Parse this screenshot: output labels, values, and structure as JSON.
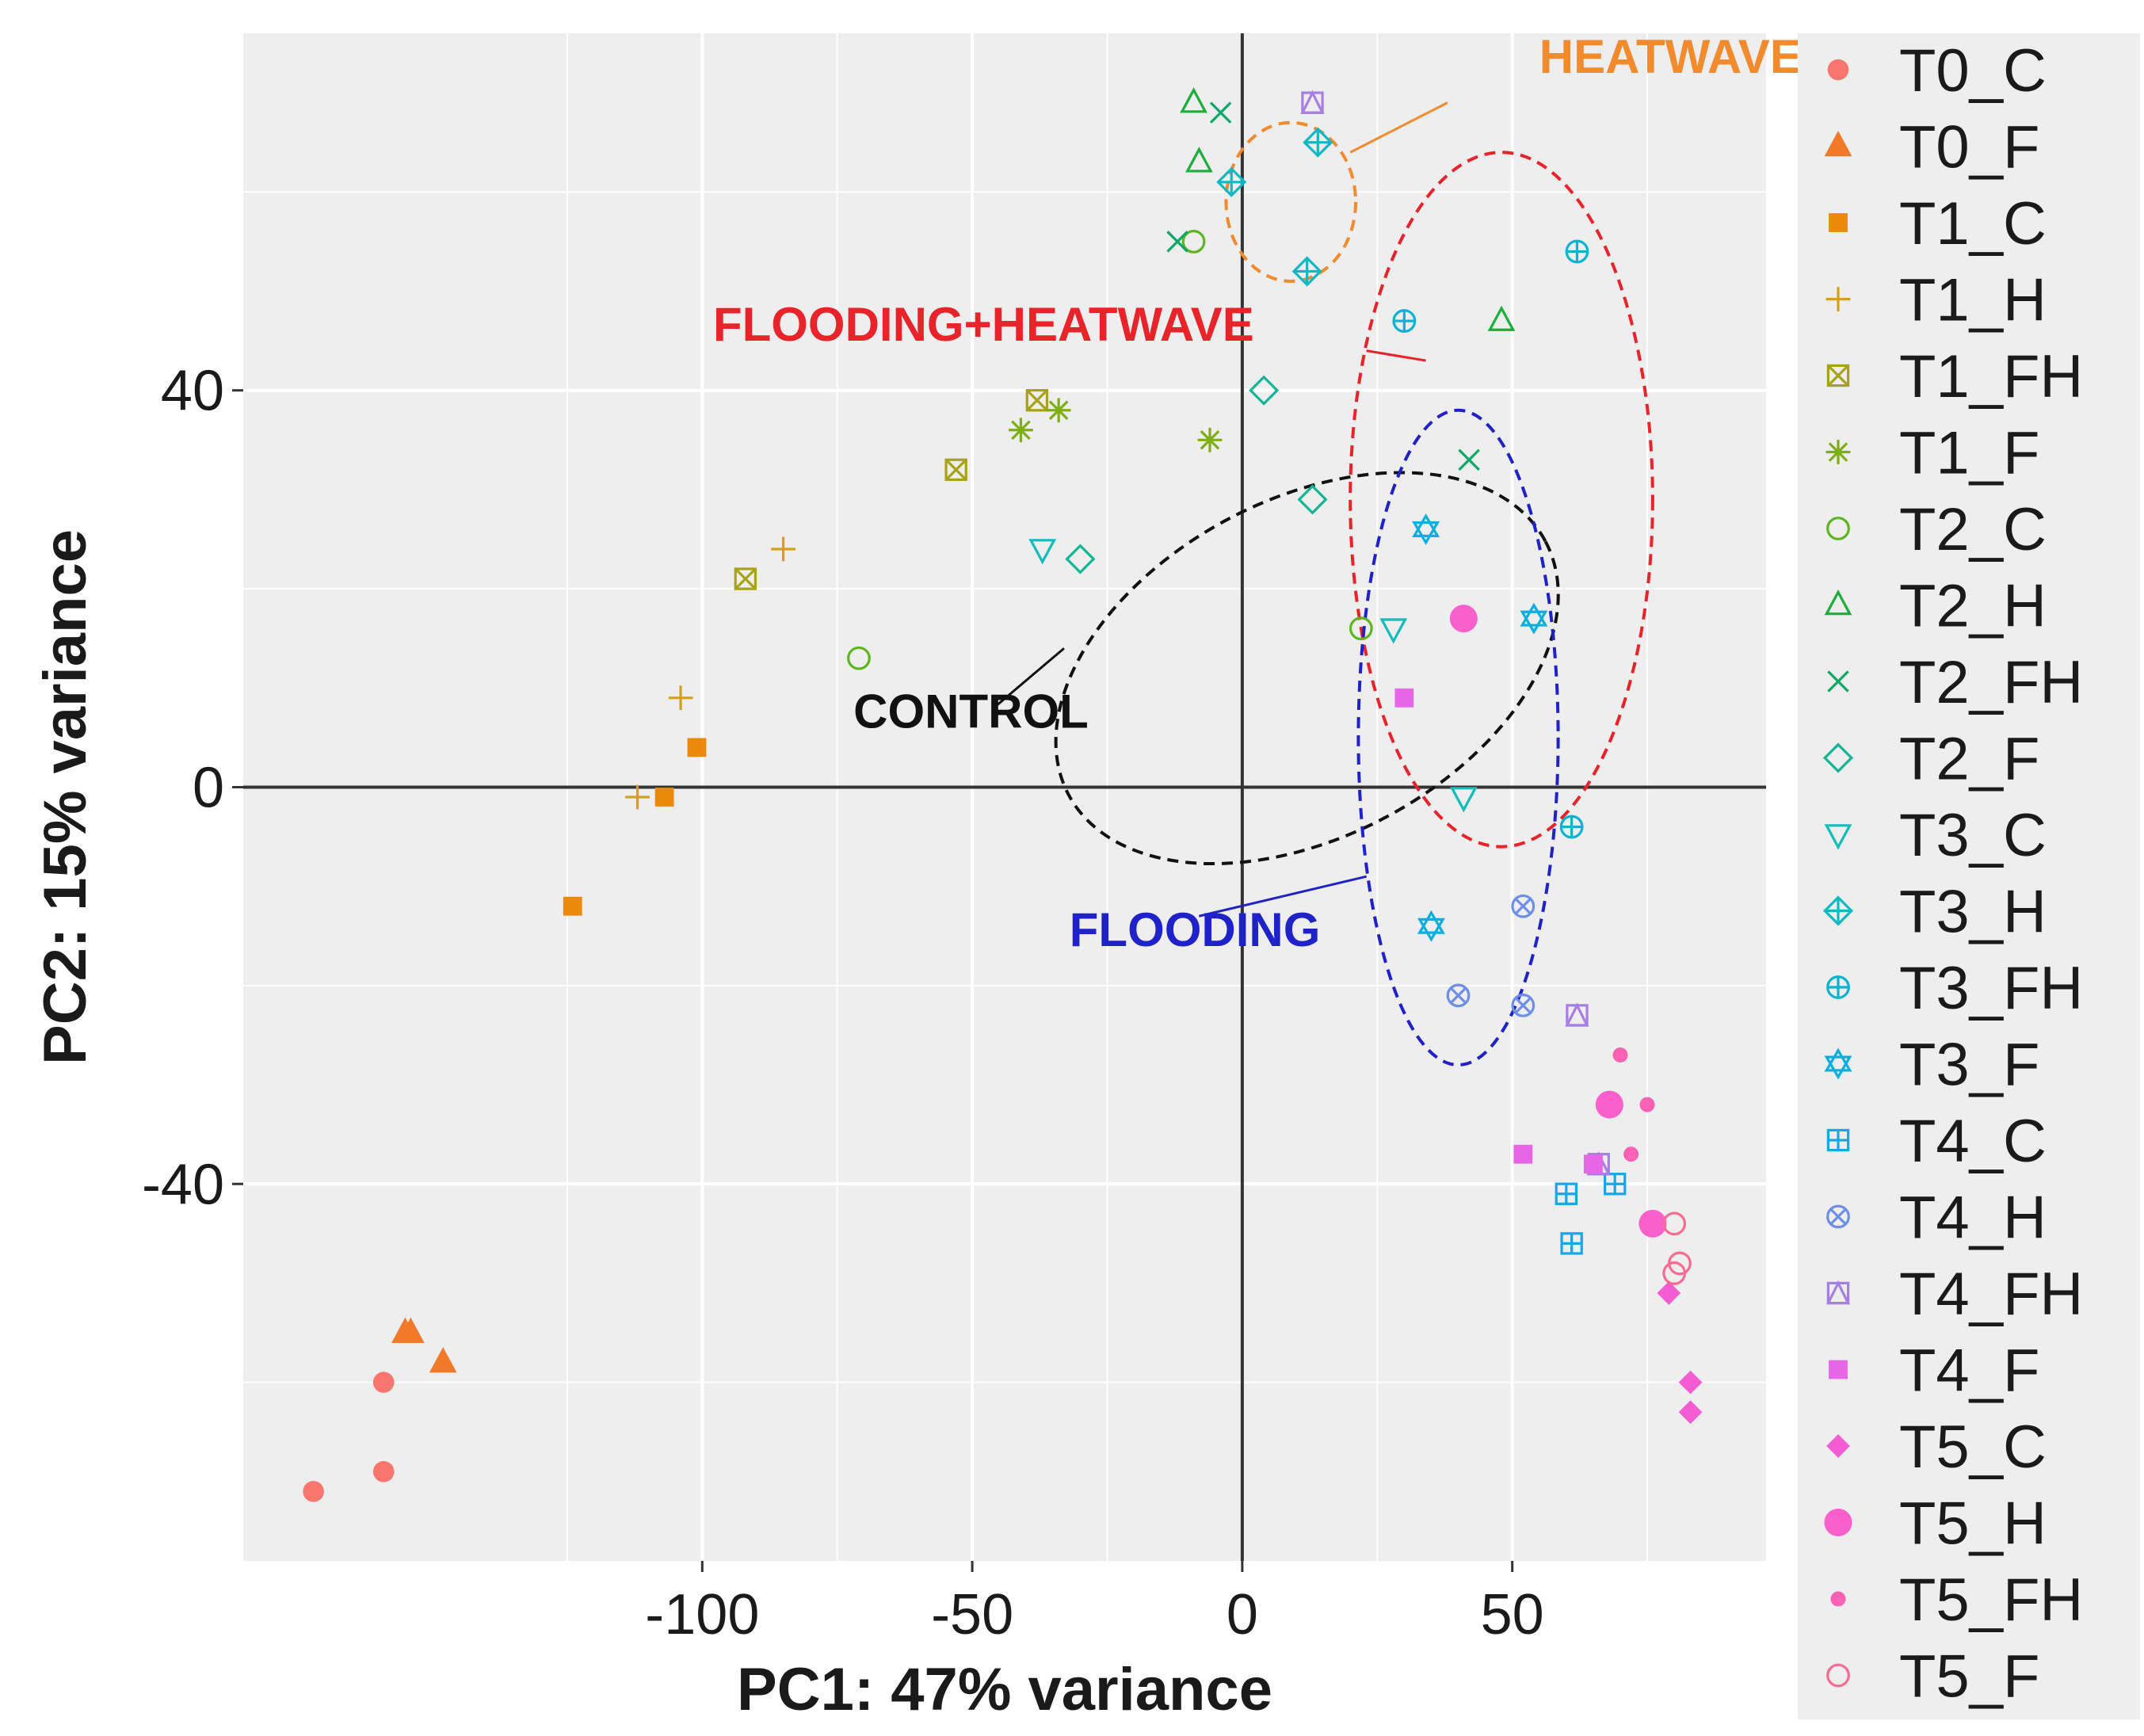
{
  "chart_data": {
    "type": "scatter",
    "xlabel": "PC1: 47% variance",
    "ylabel": "PC2: 15% variance",
    "xlim": [
      -185,
      97
    ],
    "ylim": [
      -78,
      76
    ],
    "x_ticks": [
      -100,
      -50,
      0,
      50
    ],
    "x_tick_labels": [
      "-100",
      "-50",
      "0",
      "50"
    ],
    "y_ticks": [
      -40,
      0,
      40
    ],
    "y_tick_labels": [
      "-40",
      "0",
      "40"
    ],
    "x_minor_grid": [
      -125,
      -75,
      -25,
      25,
      75
    ],
    "y_minor_grid": [
      -60,
      -20,
      20,
      60
    ],
    "grid": true,
    "legend_position": "right",
    "groups": [
      {
        "name": "T0_C",
        "color": "#F8766D",
        "shape": "circle-filled",
        "points": [
          [
            -159,
            -60
          ],
          [
            -172,
            -71
          ],
          [
            -159,
            -69
          ]
        ]
      },
      {
        "name": "T0_F",
        "color": "#F07A2A",
        "shape": "triangle-filled",
        "points": [
          [
            -155,
            -55
          ],
          [
            -154,
            -55
          ],
          [
            -148,
            -58
          ]
        ]
      },
      {
        "name": "T1_C",
        "color": "#E98A0A",
        "shape": "square-filled",
        "points": [
          [
            -101,
            4
          ],
          [
            -107,
            -1
          ],
          [
            -124,
            -12
          ]
        ]
      },
      {
        "name": "T1_H",
        "color": "#D4A017",
        "shape": "plus",
        "points": [
          [
            -85,
            24
          ],
          [
            -104,
            9
          ],
          [
            -112,
            -1
          ]
        ]
      },
      {
        "name": "T1_FH",
        "color": "#A8A218",
        "shape": "square-cross",
        "points": [
          [
            -38,
            39
          ],
          [
            -53,
            32
          ],
          [
            -92,
            21
          ]
        ]
      },
      {
        "name": "T1_F",
        "color": "#7DAE14",
        "shape": "asterisk",
        "points": [
          [
            -34,
            38
          ],
          [
            -41,
            36
          ],
          [
            -6,
            35
          ]
        ]
      },
      {
        "name": "T2_C",
        "color": "#5EB520",
        "shape": "circle-open",
        "points": [
          [
            -9,
            55
          ],
          [
            -71,
            13
          ],
          [
            22,
            16
          ]
        ]
      },
      {
        "name": "T2_H",
        "color": "#1AAE3A",
        "shape": "triangle-open",
        "points": [
          [
            -9,
            69
          ],
          [
            -8,
            63
          ],
          [
            48,
            47
          ]
        ]
      },
      {
        "name": "T2_FH",
        "color": "#0DA869",
        "shape": "x",
        "points": [
          [
            -4,
            68
          ],
          [
            -12,
            55
          ],
          [
            42,
            33
          ]
        ]
      },
      {
        "name": "T2_F",
        "color": "#12B595",
        "shape": "diamond-open",
        "points": [
          [
            4,
            40
          ],
          [
            13,
            29
          ],
          [
            -30,
            23
          ]
        ]
      },
      {
        "name": "T3_C",
        "color": "#12BCBC",
        "shape": "triangle-down-open",
        "points": [
          [
            -37,
            24
          ],
          [
            28,
            16
          ],
          [
            41,
            -1
          ]
        ]
      },
      {
        "name": "T3_H",
        "color": "#10B8C4",
        "shape": "diamond-plus",
        "points": [
          [
            14,
            65
          ],
          [
            -2,
            61
          ],
          [
            12,
            52
          ]
        ]
      },
      {
        "name": "T3_FH",
        "color": "#0BB2D4",
        "shape": "circle-plus",
        "points": [
          [
            62,
            54
          ],
          [
            30,
            47
          ],
          [
            61,
            -4
          ]
        ]
      },
      {
        "name": "T3_F",
        "color": "#0AAFE0",
        "shape": "star-of-david",
        "points": [
          [
            34,
            26
          ],
          [
            54,
            17
          ],
          [
            35,
            -14
          ]
        ]
      },
      {
        "name": "T4_C",
        "color": "#14A8E8",
        "shape": "square-plus",
        "points": [
          [
            60,
            -41
          ],
          [
            69,
            -40
          ],
          [
            61,
            -46
          ]
        ]
      },
      {
        "name": "T4_H",
        "color": "#6E8FE8",
        "shape": "circle-cross",
        "points": [
          [
            52,
            -12
          ],
          [
            40,
            -21
          ],
          [
            52,
            -22
          ]
        ]
      },
      {
        "name": "T4_FH",
        "color": "#A77EE6",
        "shape": "square-triangle",
        "points": [
          [
            13,
            69
          ],
          [
            62,
            -23
          ],
          [
            66,
            -38
          ]
        ]
      },
      {
        "name": "T4_F",
        "color": "#E766E8",
        "shape": "square-filled",
        "points": [
          [
            52,
            -37
          ],
          [
            30,
            9
          ],
          [
            65,
            -38
          ]
        ]
      },
      {
        "name": "T5_C",
        "color": "#F55BD2",
        "shape": "diamond-filled",
        "points": [
          [
            83,
            -60
          ],
          [
            83,
            -63
          ],
          [
            79,
            -51
          ]
        ]
      },
      {
        "name": "T5_H",
        "color": "#FB5FCC",
        "shape": "circle-filled-large",
        "points": [
          [
            41,
            17
          ],
          [
            68,
            -32
          ],
          [
            76,
            -44
          ]
        ]
      },
      {
        "name": "T5_FH",
        "color": "#FB62B4",
        "shape": "circle-filled-small",
        "points": [
          [
            70,
            -27
          ],
          [
            75,
            -32
          ],
          [
            72,
            -37
          ]
        ]
      },
      {
        "name": "T5_F",
        "color": "#FA6B93",
        "shape": "circle-open",
        "points": [
          [
            80,
            -44
          ],
          [
            81,
            -48
          ],
          [
            80,
            -49
          ]
        ]
      }
    ],
    "ellipses": [
      {
        "label": "HEATWAVE",
        "color": "#F28A2E",
        "cx": 9,
        "cy": 59,
        "rx": 12,
        "ry": 8,
        "angle": 0
      },
      {
        "label": "FLOODING+HEATWAVE",
        "color": "#E8232A",
        "cx": 48,
        "cy": 29,
        "rx": 28,
        "ry": 35,
        "angle": 0
      },
      {
        "label": "CONTROL",
        "color": "#111111",
        "cx": 12,
        "cy": 12,
        "rx": 50,
        "ry": 17,
        "angle": -28
      },
      {
        "label": "FLOODING",
        "color": "#1E22C8",
        "cx": 40,
        "cy": 5,
        "rx": 18.5,
        "ry": 33,
        "angle": 0
      }
    ],
    "annotations": [
      {
        "text": "HEATWAVE",
        "color": "#F28A2E",
        "x": 55,
        "y": 72,
        "line": [
          [
            38,
            69
          ],
          [
            20,
            64
          ]
        ]
      },
      {
        "text": "FLOODING+HEATWAVE",
        "color": "#E8232A",
        "x": -98,
        "y": 45,
        "line": [
          [
            23,
            44
          ],
          [
            34,
            43
          ]
        ]
      },
      {
        "text": "CONTROL",
        "color": "#111111",
        "x": -72,
        "y": 6,
        "line": [
          [
            -46,
            8
          ],
          [
            -33,
            14
          ]
        ]
      },
      {
        "text": "FLOODING",
        "color": "#1E22C8",
        "x": -32,
        "y": -16,
        "line": [
          [
            -8,
            -13
          ],
          [
            23,
            -9
          ]
        ]
      }
    ]
  }
}
